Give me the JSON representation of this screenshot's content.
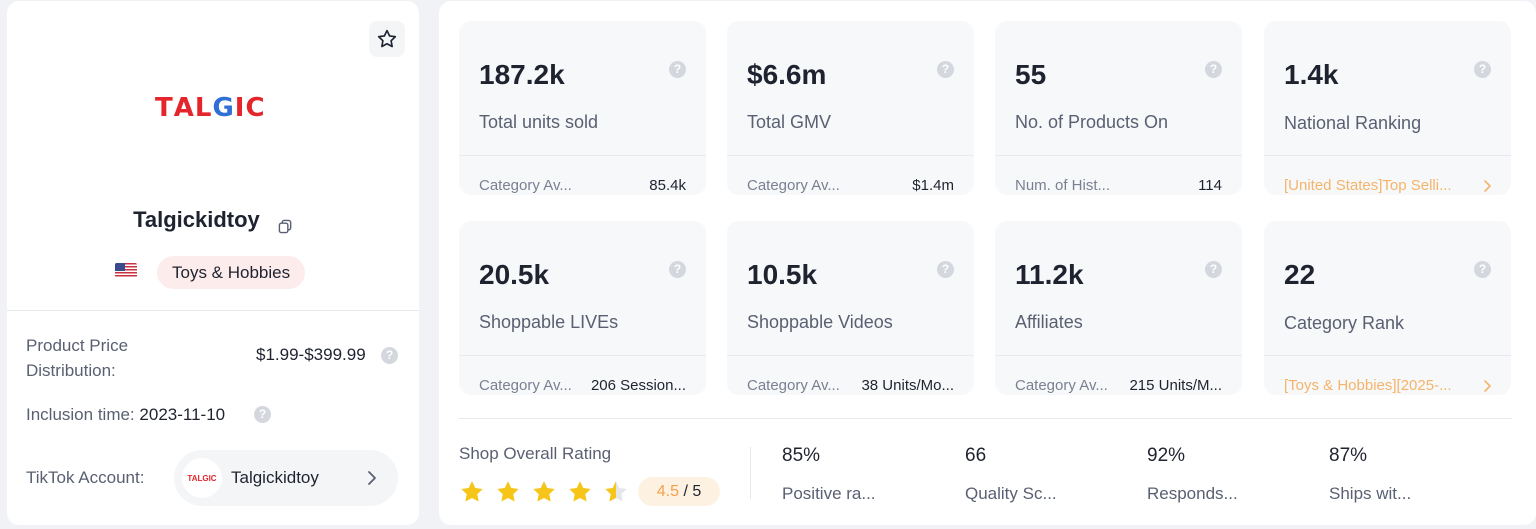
{
  "shop": {
    "logo_text": "TALGIC",
    "name": "Talgickidtoy",
    "category": "Toys & Hobbies",
    "country_flag": "us-flag",
    "price_label": "Product Price Distribution:",
    "price_value": "$1.99-$399.99",
    "inclusion_label": "Inclusion time:",
    "inclusion_value": "2023-11-10",
    "tiktok_label": "TikTok Account:",
    "tiktok_name": "Talgickidtoy",
    "tiktok_avatar_text": "TALGIC"
  },
  "cards": [
    {
      "value": "187.2k",
      "label": "Total units sold",
      "sub_label": "Category Av...",
      "sub_value": "85.4k"
    },
    {
      "value": "$6.6m",
      "label": "Total GMV",
      "sub_label": "Category Av...",
      "sub_value": "$1.4m"
    },
    {
      "value": "55",
      "label": "No. of Products On",
      "sub_label": "Num. of Hist...",
      "sub_value": "114"
    },
    {
      "value": "1.4k",
      "label": "National Ranking",
      "link": "[United States]Top Selli..."
    },
    {
      "value": "20.5k",
      "label": "Shoppable LIVEs",
      "sub_label": "Category Av...",
      "sub_value": "206 Session..."
    },
    {
      "value": "10.5k",
      "label": "Shoppable Videos",
      "sub_label": "Category Av...",
      "sub_value": "38 Units/Mo..."
    },
    {
      "value": "11.2k",
      "label": "Affiliates",
      "sub_label": "Category Av...",
      "sub_value": "215 Units/M..."
    },
    {
      "value": "22",
      "label": "Category Rank",
      "link": "[Toys & Hobbies][2025-..."
    }
  ],
  "rating": {
    "title": "Shop Overall Rating",
    "score": "4.5",
    "max": "/ 5",
    "stars_value": 4.5,
    "star_color": "#f5c518"
  },
  "metrics": [
    {
      "value": "85%",
      "label": "Positive ra..."
    },
    {
      "value": "66",
      "label": "Quality Sc..."
    },
    {
      "value": "92%",
      "label": "Responds..."
    },
    {
      "value": "87%",
      "label": "Ships wit..."
    }
  ],
  "colors": {
    "accent_link": "#f5b46a",
    "category_pill": "#fdecec",
    "rating_pill": "#fdf1e2"
  }
}
